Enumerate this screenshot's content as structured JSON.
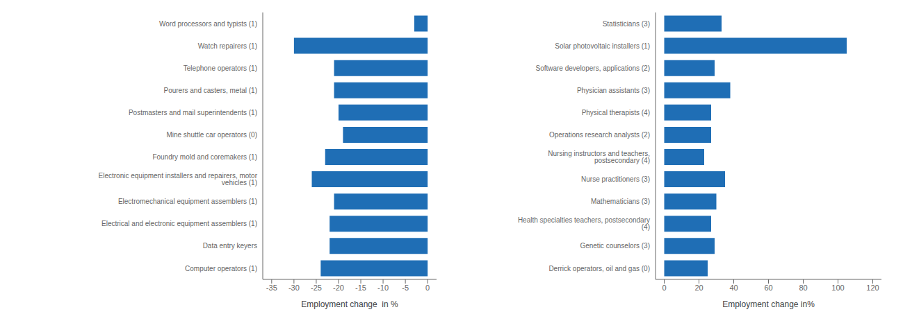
{
  "chart_data": [
    {
      "type": "bar",
      "orientation": "horizontal",
      "grid": false,
      "color": "#1f6eb5",
      "categories": [
        "Word processors and typists (1)",
        "Watch repairers (1)",
        "Telephone operators (1)",
        "Pourers and casters, metal (1)",
        "Postmasters and mail superintendents (1)",
        "Mine shuttle car operators (0)",
        "Foundry mold and coremakers (1)",
        "Electronic equipment installers and repairers, motor vehicles (1)",
        "Electromechanical equipment assemblers (1)",
        "Electrical and electronic equipment assemblers (1)",
        "Data entry keyers",
        "Computer operators (1)"
      ],
      "values": [
        -3,
        -30,
        -21,
        -21,
        -20,
        -19,
        -23,
        -26,
        -21,
        -22,
        -22,
        -24
      ],
      "x_label": "Employment change  in %",
      "xlim": [
        -37,
        2
      ],
      "xticks": [
        -35,
        -30,
        -25,
        -20,
        -15,
        -10,
        -5,
        0
      ]
    },
    {
      "type": "bar",
      "orientation": "horizontal",
      "grid": false,
      "color": "#1f6eb5",
      "categories": [
        "Statisticians (3)",
        "Solar photovoltaic installers (1)",
        "Software developers, applications (2)",
        "Physician assistants (3)",
        "Physical therapists (4)",
        "Operations research analysts (2)",
        "Nursing instructors and teachers, postsecondary (4)",
        "Nurse practitioners (3)",
        "Mathematicians (3)",
        "Health specialties teachers, postsecondary (4)",
        "Genetic counselors (3)",
        "Derrick operators, oil and gas (0)"
      ],
      "values": [
        33,
        105,
        29,
        38,
        27,
        27,
        23,
        35,
        30,
        27,
        29,
        25
      ],
      "x_label": "Employment change in%",
      "xlim": [
        -5,
        125
      ],
      "xticks": [
        0,
        20,
        40,
        60,
        80,
        100,
        120
      ]
    }
  ]
}
